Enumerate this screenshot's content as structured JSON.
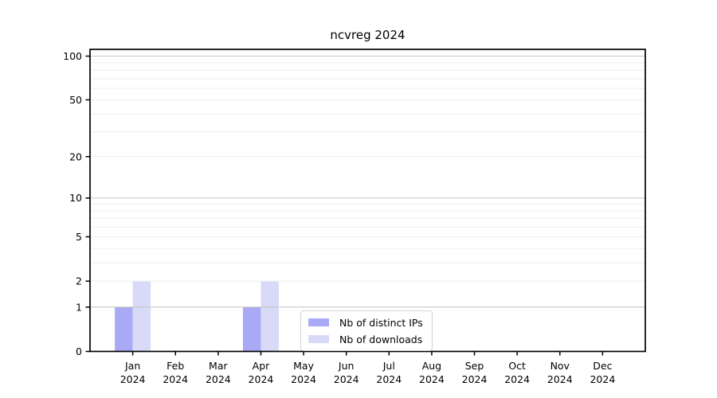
{
  "chart_data": {
    "type": "bar",
    "title": "ncvreg 2024",
    "scale": "log1p",
    "grid": true,
    "categories": [
      "Jan",
      "Feb",
      "Mar",
      "Apr",
      "May",
      "Jun",
      "Jul",
      "Aug",
      "Sep",
      "Oct",
      "Nov",
      "Dec"
    ],
    "category_year": "2024",
    "series": [
      {
        "name": "Nb of distinct IPs",
        "color": "#a9a9f5",
        "values": [
          1,
          0,
          0,
          1,
          0,
          0,
          0,
          0,
          0,
          0,
          0,
          0
        ]
      },
      {
        "name": "Nb of downloads",
        "color": "#d9d9f8",
        "values": [
          2,
          0,
          0,
          2,
          0,
          0,
          0,
          0,
          0,
          0,
          0,
          0
        ]
      }
    ],
    "yticks": [
      0,
      1,
      2,
      5,
      10,
      20,
      50,
      100
    ],
    "ylim": [
      0,
      100
    ],
    "major_gridlines": [
      1,
      10,
      100
    ],
    "minor_gridlines": [
      2,
      3,
      4,
      5,
      6,
      7,
      8,
      9,
      20,
      30,
      40,
      50,
      60,
      70,
      80,
      90
    ],
    "legend_position": "lower center, inside plot",
    "colors": {
      "axis": "#000000",
      "major_grid": "#c6c6c6",
      "minor_grid": "#eeeeee",
      "legend_border": "#d4d4d4",
      "background": "#ffffff"
    }
  }
}
